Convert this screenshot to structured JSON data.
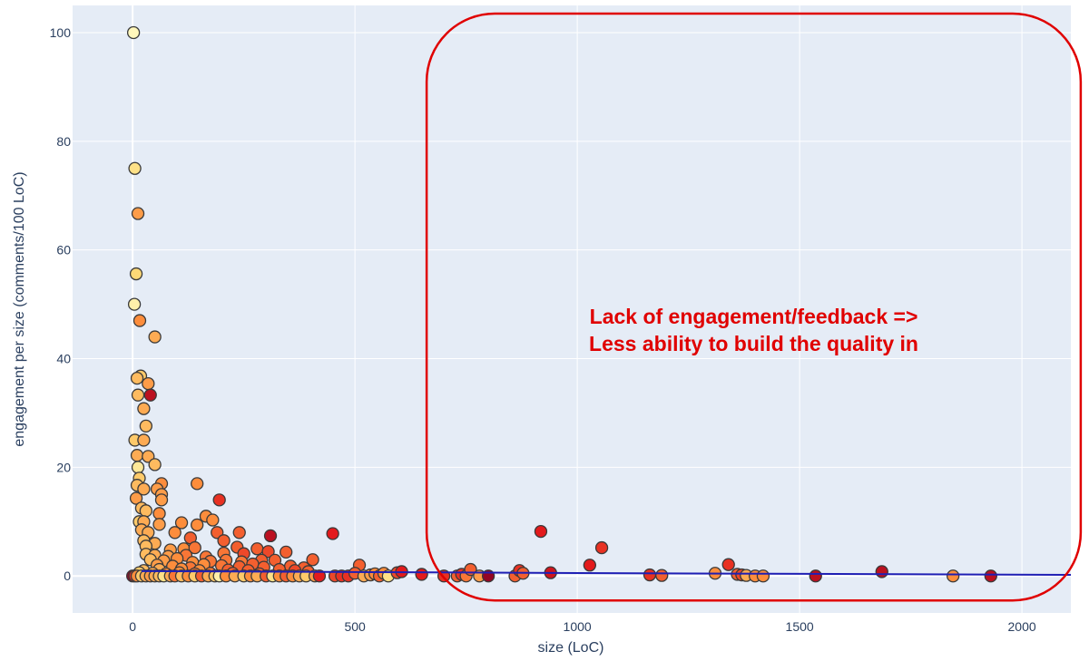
{
  "chart_data": {
    "type": "scatter",
    "xlabel": "size (LoC)",
    "ylabel": "engagement per size (comments/100 LoC)",
    "xlim": [
      -135,
      2110
    ],
    "ylim": [
      -6.8,
      105
    ],
    "x_ticks": [
      0,
      500,
      1000,
      1500,
      2000
    ],
    "y_ticks": [
      0,
      20,
      40,
      60,
      80,
      100
    ],
    "grid": true,
    "background": "#e5ecf6",
    "trendline_color": "#1f1fb4",
    "annotation": {
      "lines": [
        "Lack of engagement/feedback =>",
        "Less ability to build the quality in"
      ],
      "color": "#e00000",
      "x_range": [
        600,
        2120
      ],
      "y_range": [
        -4.5,
        103.5
      ]
    },
    "points": [
      [
        2,
        100,
        0.05
      ],
      [
        5,
        75,
        0.2
      ],
      [
        12,
        66.7,
        0.45
      ],
      [
        8,
        55.6,
        0.25
      ],
      [
        4,
        50,
        0.1
      ],
      [
        16,
        47,
        0.5
      ],
      [
        50,
        44,
        0.4
      ],
      [
        18,
        36.8,
        0.3
      ],
      [
        10,
        36.4,
        0.35
      ],
      [
        35,
        35.4,
        0.45
      ],
      [
        12,
        33.3,
        0.35
      ],
      [
        40,
        33.3,
        0.85
      ],
      [
        25,
        30.8,
        0.4
      ],
      [
        30,
        27.6,
        0.35
      ],
      [
        5,
        25,
        0.3
      ],
      [
        25,
        25,
        0.4
      ],
      [
        10,
        22.2,
        0.4
      ],
      [
        35,
        22,
        0.4
      ],
      [
        50,
        20.5,
        0.35
      ],
      [
        12,
        20,
        0.15
      ],
      [
        15,
        18,
        0.3
      ],
      [
        65,
        17,
        0.5
      ],
      [
        10,
        16.7,
        0.35
      ],
      [
        25,
        16,
        0.4
      ],
      [
        55,
        16,
        0.45
      ],
      [
        145,
        17,
        0.5
      ],
      [
        65,
        15,
        0.45
      ],
      [
        8,
        14.3,
        0.45
      ],
      [
        65,
        14,
        0.45
      ],
      [
        195,
        14,
        0.7
      ],
      [
        20,
        12.5,
        0.35
      ],
      [
        30,
        12,
        0.35
      ],
      [
        60,
        11.5,
        0.5
      ],
      [
        15,
        10,
        0.3
      ],
      [
        25,
        10,
        0.4
      ],
      [
        60,
        9.5,
        0.45
      ],
      [
        110,
        9.8,
        0.5
      ],
      [
        145,
        9.4,
        0.5
      ],
      [
        165,
        11,
        0.5
      ],
      [
        180,
        10.3,
        0.5
      ],
      [
        20,
        8.5,
        0.4
      ],
      [
        35,
        8,
        0.4
      ],
      [
        95,
        8,
        0.5
      ],
      [
        190,
        8,
        0.6
      ],
      [
        240,
        8,
        0.6
      ],
      [
        310,
        7.4,
        0.85
      ],
      [
        450,
        7.8,
        0.75
      ],
      [
        25,
        6.5,
        0.35
      ],
      [
        50,
        6,
        0.4
      ],
      [
        130,
        7,
        0.6
      ],
      [
        205,
        6.5,
        0.6
      ],
      [
        30,
        5.5,
        0.35
      ],
      [
        85,
        4.8,
        0.45
      ],
      [
        115,
        5,
        0.5
      ],
      [
        140,
        5.2,
        0.55
      ],
      [
        235,
        5.3,
        0.6
      ],
      [
        280,
        5,
        0.6
      ],
      [
        305,
        4.5,
        0.65
      ],
      [
        345,
        4.4,
        0.6
      ],
      [
        30,
        4,
        0.35
      ],
      [
        50,
        3.8,
        0.4
      ],
      [
        80,
        3.6,
        0.45
      ],
      [
        120,
        3.8,
        0.55
      ],
      [
        165,
        3.5,
        0.55
      ],
      [
        205,
        4.2,
        0.55
      ],
      [
        250,
        4.1,
        0.65
      ],
      [
        40,
        3,
        0.35
      ],
      [
        70,
        2.8,
        0.45
      ],
      [
        100,
        3.2,
        0.5
      ],
      [
        135,
        2.5,
        0.5
      ],
      [
        175,
        2.7,
        0.55
      ],
      [
        210,
        2.9,
        0.55
      ],
      [
        245,
        2.6,
        0.55
      ],
      [
        290,
        2.9,
        0.6
      ],
      [
        320,
        2.9,
        0.6
      ],
      [
        405,
        3,
        0.6
      ],
      [
        55,
        2,
        0.45
      ],
      [
        90,
        1.8,
        0.5
      ],
      [
        130,
        1.5,
        0.55
      ],
      [
        160,
        2.1,
        0.5
      ],
      [
        200,
        1.9,
        0.55
      ],
      [
        240,
        1.7,
        0.6
      ],
      [
        270,
        2.2,
        0.6
      ],
      [
        295,
        1.6,
        0.6
      ],
      [
        355,
        1.8,
        0.6
      ],
      [
        385,
        1.5,
        0.6
      ],
      [
        25,
        1,
        0.35
      ],
      [
        60,
        1.2,
        0.4
      ],
      [
        110,
        1.3,
        0.5
      ],
      [
        150,
        1,
        0.5
      ],
      [
        215,
        1.1,
        0.6
      ],
      [
        260,
        1,
        0.6
      ],
      [
        330,
        1.2,
        0.6
      ],
      [
        365,
        1,
        0.65
      ],
      [
        510,
        2,
        0.6
      ],
      [
        15,
        0.6,
        0.3
      ],
      [
        45,
        0.5,
        0.4
      ],
      [
        75,
        0.4,
        0.5
      ],
      [
        105,
        0.6,
        0.5
      ],
      [
        140,
        0.4,
        0.55
      ],
      [
        175,
        0.5,
        0.55
      ],
      [
        225,
        0.5,
        0.6
      ],
      [
        285,
        0.4,
        0.6
      ],
      [
        395,
        0.8,
        0.6
      ],
      [
        0,
        0,
        0.95
      ],
      [
        5,
        0,
        0.7
      ],
      [
        10,
        0,
        0.5
      ],
      [
        20,
        0,
        0.3
      ],
      [
        30,
        0,
        0.4
      ],
      [
        40,
        0,
        0.45
      ],
      [
        50,
        0,
        0.4
      ],
      [
        60,
        0,
        0.35
      ],
      [
        70,
        0,
        0.2
      ],
      [
        85,
        0,
        0.4
      ],
      [
        95,
        0,
        0.55
      ],
      [
        110,
        0,
        0.35
      ],
      [
        125,
        0,
        0.5
      ],
      [
        140,
        0,
        0.3
      ],
      [
        155,
        0,
        0.6
      ],
      [
        170,
        0,
        0.4
      ],
      [
        185,
        0,
        0.3
      ],
      [
        195,
        0,
        0.1
      ],
      [
        210,
        0,
        0.5
      ],
      [
        230,
        0,
        0.4
      ],
      [
        250,
        0,
        0.3
      ],
      [
        265,
        0,
        0.5
      ],
      [
        280,
        0,
        0.4
      ],
      [
        300,
        0,
        0.6
      ],
      [
        315,
        0,
        0.2
      ],
      [
        330,
        0,
        0.5
      ],
      [
        345,
        0,
        0.6
      ],
      [
        360,
        0,
        0.5
      ],
      [
        375,
        0,
        0.4
      ],
      [
        390,
        0,
        0.3
      ],
      [
        410,
        0,
        0.45
      ],
      [
        420,
        0,
        0.75
      ],
      [
        455,
        0,
        0.65
      ],
      [
        470,
        0,
        0.7
      ],
      [
        485,
        0,
        0.7
      ],
      [
        500,
        0.5,
        0.6
      ],
      [
        520,
        0,
        0.4
      ],
      [
        535,
        0.2,
        0.45
      ],
      [
        545,
        0.4,
        0.5
      ],
      [
        555,
        0,
        0.6
      ],
      [
        565,
        0.5,
        0.5
      ],
      [
        575,
        0,
        0.2
      ],
      [
        595,
        0.6,
        0.65
      ],
      [
        605,
        0.8,
        0.75
      ],
      [
        650,
        0.3,
        0.75
      ],
      [
        700,
        0,
        0.7
      ],
      [
        730,
        0,
        0.6
      ],
      [
        740,
        0.3,
        0.7
      ],
      [
        750,
        0,
        0.55
      ],
      [
        760,
        1.2,
        0.6
      ],
      [
        780,
        0,
        0.45
      ],
      [
        800,
        0,
        0.95
      ],
      [
        860,
        0,
        0.6
      ],
      [
        870,
        1,
        0.7
      ],
      [
        878,
        0.5,
        0.6
      ],
      [
        918,
        8.2,
        0.75
      ],
      [
        940,
        0.6,
        0.8
      ],
      [
        1028,
        2,
        0.75
      ],
      [
        1055,
        5.2,
        0.7
      ],
      [
        1163,
        0.2,
        0.7
      ],
      [
        1190,
        0.1,
        0.6
      ],
      [
        1310,
        0.5,
        0.5
      ],
      [
        1340,
        2.1,
        0.7
      ],
      [
        1360,
        0.3,
        0.6
      ],
      [
        1370,
        0.2,
        0.65
      ],
      [
        1380,
        0.1,
        0.4
      ],
      [
        1400,
        0,
        0.5
      ],
      [
        1418,
        0,
        0.5
      ],
      [
        1536,
        0,
        0.85
      ],
      [
        1685,
        0.8,
        0.85
      ],
      [
        1845,
        0,
        0.5
      ],
      [
        1930,
        0,
        0.85
      ]
    ],
    "trendline": [
      [
        20,
        0.9
      ],
      [
        1000,
        0.55
      ],
      [
        2110,
        0.2
      ]
    ]
  }
}
